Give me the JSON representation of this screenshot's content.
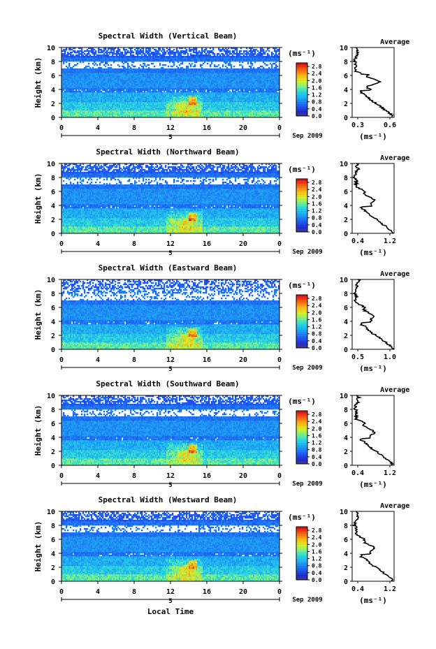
{
  "chart_data": {
    "type": "heatmap",
    "panels": [
      {
        "title": "Spectral Width (Vertical Beam)",
        "profile_ticks": [
          "0.3",
          "0.6"
        ],
        "profile_xlim": [
          0.3,
          0.6
        ]
      },
      {
        "title": "Spectral Width (Northward Beam)",
        "profile_ticks": [
          "0.4",
          "1.2"
        ],
        "profile_xlim": [
          0.4,
          1.2
        ]
      },
      {
        "title": "Spectral Width (Eastward Beam)",
        "profile_ticks": [
          "0.5",
          "1.0"
        ],
        "profile_xlim": [
          0.5,
          1.0
        ]
      },
      {
        "title": "Spectral Width (Southward Beam)",
        "profile_ticks": [
          "0.4",
          "1.2"
        ],
        "profile_xlim": [
          0.4,
          1.2
        ]
      },
      {
        "title": "Spectral Width (Westward Beam)",
        "profile_ticks": [
          "0.4",
          "1.2"
        ],
        "profile_xlim": [
          0.4,
          1.2
        ]
      }
    ],
    "ylabel": "Height (km)",
    "yticks": [
      "0",
      "2",
      "4",
      "6",
      "8",
      "10"
    ],
    "ylim": [
      0,
      10
    ],
    "xticks": [
      "0",
      "4",
      "8",
      "12",
      "16",
      "20",
      "0"
    ],
    "xlim": [
      0,
      24
    ],
    "date_label": "5",
    "month_label": "Sep 2009",
    "xlabel": "Local Time",
    "colorbar_unit": "(ms⁻¹)",
    "colorbar_ticks": [
      "0.0",
      "0.4",
      "0.8",
      "1.2",
      "1.6",
      "2.0",
      "2.4",
      "2.8"
    ],
    "colorbar_range": [
      0,
      3
    ],
    "profile_title": "Average",
    "profile_unit": "(ms⁻¹)",
    "profile_yticks": [
      "0",
      "2",
      "4",
      "6",
      "8",
      "10"
    ]
  }
}
